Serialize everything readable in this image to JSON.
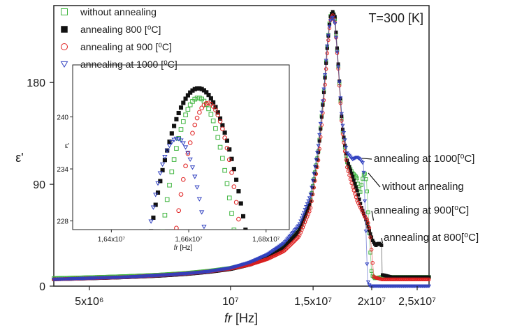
{
  "chart_data": {
    "type": "scatter",
    "temperature_label": "T=300 [K]",
    "xlabel": "fr [Hz]",
    "xlabel_italic": "fr",
    "xlabel_unit": " [Hz]",
    "ylabel": "ε'",
    "x_scale": "log",
    "xlim": [
      4200000,
      26500000
    ],
    "ylim": [
      0,
      248
    ],
    "x_ticks": [
      {
        "value": 5000000,
        "label": "5x10⁶"
      },
      {
        "value": 10000000,
        "label": "10⁷"
      },
      {
        "value": 15000000,
        "label": "1,5x10⁷"
      },
      {
        "value": 20000000,
        "label": "2x10⁷"
      },
      {
        "value": 25000000,
        "label": "2,5x10⁷"
      }
    ],
    "y_ticks": [
      {
        "value": 0,
        "label": "0"
      },
      {
        "value": 90,
        "label": "90"
      },
      {
        "value": 180,
        "label": "180"
      }
    ],
    "series": [
      {
        "name": "without annealing",
        "color": "#3fb53f",
        "marker": "open-square",
        "points": [
          [
            4200000,
            7
          ],
          [
            5000000,
            7.8
          ],
          [
            6000000,
            8.8
          ],
          [
            7000000,
            10
          ],
          [
            8000000,
            11.5
          ],
          [
            9000000,
            13.5
          ],
          [
            10000000,
            16
          ],
          [
            11000000,
            20
          ],
          [
            12000000,
            26
          ],
          [
            13000000,
            35
          ],
          [
            14000000,
            50
          ],
          [
            14800000,
            75
          ],
          [
            15400000,
            120
          ],
          [
            15800000,
            170
          ],
          [
            16100000,
            215
          ],
          [
            16300000,
            238
          ],
          [
            16500000,
            242
          ],
          [
            16700000,
            236
          ],
          [
            17000000,
            190
          ],
          [
            17300000,
            140
          ],
          [
            17700000,
            110
          ],
          [
            18200000,
            100
          ],
          [
            18600000,
            96
          ],
          [
            18900000,
            82
          ],
          [
            19100000,
            94
          ],
          [
            19300000,
            101
          ],
          [
            19500000,
            92
          ],
          [
            19800000,
            40
          ],
          [
            20000000,
            10
          ],
          [
            20300000,
            7
          ],
          [
            21000000,
            8
          ],
          [
            23000000,
            8
          ],
          [
            26500000,
            8
          ]
        ]
      },
      {
        "name": "annealing 800 [⁰C]",
        "color": "#111111",
        "marker": "filled-square",
        "points": [
          [
            4200000,
            6
          ],
          [
            5000000,
            6.8
          ],
          [
            6000000,
            7.8
          ],
          [
            7000000,
            9
          ],
          [
            8000000,
            10.5
          ],
          [
            9000000,
            12.5
          ],
          [
            10000000,
            15
          ],
          [
            11000000,
            19
          ],
          [
            12000000,
            25
          ],
          [
            13000000,
            34
          ],
          [
            14000000,
            49
          ],
          [
            14800000,
            74
          ],
          [
            15400000,
            119
          ],
          [
            15800000,
            169
          ],
          [
            16100000,
            214
          ],
          [
            16300000,
            237
          ],
          [
            16500000,
            243
          ],
          [
            16700000,
            238
          ],
          [
            17000000,
            192
          ],
          [
            17300000,
            142
          ],
          [
            17700000,
            112
          ],
          [
            18200000,
            97
          ],
          [
            18600000,
            85
          ],
          [
            19000000,
            70
          ],
          [
            19400000,
            60
          ],
          [
            19800000,
            48
          ],
          [
            20100000,
            40
          ],
          [
            20400000,
            36
          ],
          [
            20700000,
            38
          ],
          [
            21000000,
            36
          ],
          [
            21050000,
            10
          ],
          [
            22000000,
            8
          ],
          [
            24000000,
            8
          ],
          [
            26500000,
            8
          ]
        ]
      },
      {
        "name": "annealing at 900 [⁰C]",
        "color": "#e02020",
        "marker": "open-circle",
        "points": [
          [
            4200000,
            6
          ],
          [
            5000000,
            7
          ],
          [
            6000000,
            8
          ],
          [
            7000000,
            9.5
          ],
          [
            8000000,
            11
          ],
          [
            9000000,
            13
          ],
          [
            10000000,
            15.5
          ],
          [
            11000000,
            19
          ],
          [
            12000000,
            24
          ],
          [
            13000000,
            31
          ],
          [
            14000000,
            44
          ],
          [
            14800000,
            68
          ],
          [
            15400000,
            112
          ],
          [
            15800000,
            162
          ],
          [
            16100000,
            210
          ],
          [
            16300000,
            234
          ],
          [
            16500000,
            240
          ],
          [
            16700000,
            233
          ],
          [
            17000000,
            188
          ],
          [
            17300000,
            138
          ],
          [
            17700000,
            106
          ],
          [
            18200000,
            88
          ],
          [
            18600000,
            76
          ],
          [
            19000000,
            68
          ],
          [
            19300000,
            62
          ],
          [
            19600000,
            58
          ],
          [
            19800000,
            50
          ],
          [
            20000000,
            30
          ],
          [
            20200000,
            8
          ],
          [
            21000000,
            6
          ],
          [
            23000000,
            6
          ],
          [
            26500000,
            6
          ]
        ]
      },
      {
        "name": "annealing at 1000 [⁰C]",
        "color": "#3040c0",
        "marker": "open-triangle-down",
        "points": [
          [
            4200000,
            6
          ],
          [
            5000000,
            7
          ],
          [
            6000000,
            8
          ],
          [
            7000000,
            9.5
          ],
          [
            8000000,
            11
          ],
          [
            9000000,
            13
          ],
          [
            10000000,
            16
          ],
          [
            11000000,
            21
          ],
          [
            12000000,
            28
          ],
          [
            13000000,
            38
          ],
          [
            14000000,
            54
          ],
          [
            14800000,
            80
          ],
          [
            15400000,
            125
          ],
          [
            15800000,
            172
          ],
          [
            16100000,
            216
          ],
          [
            16300000,
            234
          ],
          [
            16500000,
            238
          ],
          [
            16700000,
            232
          ],
          [
            17000000,
            190
          ],
          [
            17300000,
            145
          ],
          [
            17700000,
            118
          ],
          [
            18200000,
            112
          ],
          [
            18600000,
            114
          ],
          [
            18900000,
            112
          ],
          [
            19200000,
            108
          ],
          [
            19400000,
            60
          ],
          [
            19600000,
            5
          ],
          [
            19800000,
            0
          ],
          [
            20200000,
            0
          ],
          [
            21000000,
            0
          ],
          [
            23000000,
            0
          ],
          [
            26500000,
            0
          ]
        ]
      }
    ],
    "legend": {
      "placement": "top-left"
    },
    "annotations": [
      {
        "text": "annealing at 1000[⁰C]",
        "series": 3,
        "x": 18800000,
        "y": 113
      },
      {
        "text": "without annealing",
        "series": 0,
        "x": 19400000,
        "y": 100
      },
      {
        "text": "annealing at 900[⁰C]",
        "series": 2,
        "x": 19900000,
        "y": 58
      },
      {
        "text": "annealing at 800[⁰C]",
        "series": 1,
        "x": 20800000,
        "y": 38
      }
    ],
    "inset": {
      "xlabel": "fr [Hz]",
      "xlabel_italic": "fr",
      "xlabel_unit": " [Hz]",
      "ylabel": "ε'",
      "xlim": [
        16300000,
        16860000
      ],
      "ylim": [
        227,
        246
      ],
      "x_ticks": [
        {
          "value": 16400000,
          "label": "1,64x10⁷"
        },
        {
          "value": 16600000,
          "label": "1,66x10⁷"
        },
        {
          "value": 16800000,
          "label": "1,68x10⁷"
        }
      ],
      "y_ticks": [
        {
          "value": 228,
          "label": "228"
        },
        {
          "value": 234,
          "label": "234"
        },
        {
          "value": 240,
          "label": "240"
        }
      ],
      "peaks": [
        {
          "series": 0,
          "x0": 16625000,
          "peak": 242.2,
          "a": 1800
        },
        {
          "series": 1,
          "x0": 16625000,
          "peak": 243.3,
          "a": 1100
        },
        {
          "series": 2,
          "x0": 16650000,
          "peak": 241.6,
          "a": 2150
        },
        {
          "series": 3,
          "x0": 16570000,
          "peak": 237.5,
          "a": 2100
        }
      ]
    }
  }
}
